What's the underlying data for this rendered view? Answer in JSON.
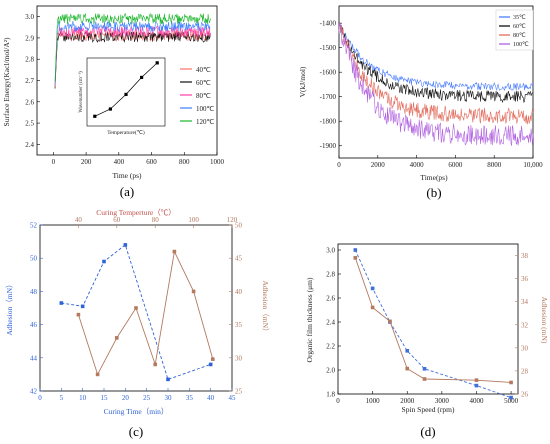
{
  "chart_data": [
    {
      "id": "a",
      "panel_label": "(a)",
      "type": "line",
      "xlabel": "Time (ps)",
      "ylabel": "Surface Energy(Kacl/mol/A²)",
      "xlim": [
        -100,
        1000
      ],
      "ylim": [
        2.35,
        3.05
      ],
      "xticks": [
        "0",
        "200",
        "400",
        "600",
        "800",
        "1000"
      ],
      "yticks": [
        "2.4",
        "2.5",
        "2.6",
        "2.7",
        "2.8",
        "2.9",
        "3.0"
      ],
      "series": [
        {
          "name": "40℃",
          "color": "#ff6f6f",
          "level": 2.91
        },
        {
          "name": "60℃",
          "color": "#111111",
          "level": 2.905
        },
        {
          "name": "80℃",
          "color": "#ff3fa6",
          "level": 2.93
        },
        {
          "name": "100℃",
          "color": "#3c7dff",
          "level": 2.955
        },
        {
          "name": "120℃",
          "color": "#1bb52a",
          "level": 2.99
        }
      ],
      "inset": {
        "xlabel": "Temperature(℃)",
        "ylabel": "Wavenumber (cm⁻¹)",
        "x": [
          40,
          60,
          80,
          100,
          120
        ],
        "y": [
          2.91,
          2.925,
          2.955,
          2.99,
          3.02
        ]
      }
    },
    {
      "id": "b",
      "panel_label": "(b)",
      "type": "line",
      "xlabel": "Time(ps)",
      "ylabel": "V(kJ/mol)",
      "xlim": [
        0,
        10000
      ],
      "ylim": [
        -1950,
        -1330
      ],
      "xticks": [
        "0",
        "2000",
        "4000",
        "6000",
        "8000",
        "10,000"
      ],
      "yticks": [
        "-1400",
        "-1500",
        "-1600",
        "-1700",
        "-1800",
        "-1900"
      ],
      "series": [
        {
          "name": "35℃",
          "color": "#4f7fff",
          "end": -1660
        },
        {
          "name": "60℃",
          "color": "#111111",
          "end": -1700
        },
        {
          "name": "80℃",
          "color": "#e26b5c",
          "end": -1780
        },
        {
          "name": "100℃",
          "color": "#b060e0",
          "end": -1860
        }
      ]
    },
    {
      "id": "c",
      "panel_label": "(c)",
      "type": "line",
      "title": "Curing Temperture（℃）",
      "xlabel": "Curing Time（min）",
      "ylabel_left": "Adhesion（mN）",
      "ylabel_right": "Adhesion（mN）",
      "x_bottom": {
        "lim": [
          0,
          45
        ],
        "ticks": [
          "0",
          "5",
          "10",
          "15",
          "20",
          "25",
          "30",
          "35",
          "40",
          "45"
        ]
      },
      "x_top": {
        "lim": [
          20,
          120
        ],
        "ticks": [
          "40",
          "60",
          "80",
          "100",
          "120"
        ]
      },
      "y_left": {
        "lim": [
          42,
          52
        ],
        "ticks": [
          "42",
          "44",
          "46",
          "48",
          "50",
          "52"
        ]
      },
      "y_right": {
        "lim": [
          25,
          50
        ],
        "ticks": [
          "25",
          "30",
          "35",
          "40",
          "45",
          "50"
        ]
      },
      "series": [
        {
          "name": "Curing Time",
          "axis": "bottom-left",
          "color": "#2f63d6",
          "style": "dashed",
          "x": [
            5,
            10,
            15,
            20,
            30,
            40
          ],
          "y": [
            47.3,
            47.1,
            49.8,
            50.8,
            42.7,
            43.6
          ]
        },
        {
          "name": "Curing Temperture",
          "axis": "top-right",
          "color": "#b37a60",
          "style": "solid",
          "x": [
            40,
            50,
            60,
            70,
            80,
            90,
            100,
            110
          ],
          "y": [
            36.5,
            27.5,
            33,
            37.5,
            29,
            46,
            40,
            29.8
          ]
        }
      ]
    },
    {
      "id": "d",
      "panel_label": "(d)",
      "type": "line",
      "xlabel": "Spin Speed (rpm)",
      "ylabel_left": "Organic film thickness (μm)",
      "ylabel_right": "Adhesion (mN)",
      "xlim": [
        0,
        5200
      ],
      "xticks": [
        "0",
        "1000",
        "2000",
        "3000",
        "4000",
        "5000"
      ],
      "y_left": {
        "lim": [
          1.8,
          3.05
        ],
        "ticks": [
          "1.8",
          "2.0",
          "2.2",
          "2.4",
          "2.6",
          "2.8",
          "3.0"
        ]
      },
      "y_right": {
        "lim": [
          26,
          39
        ],
        "ticks": [
          "26",
          "28",
          "30",
          "32",
          "34",
          "36",
          "38"
        ]
      },
      "series": [
        {
          "name": "Organic film thickness",
          "axis": "left",
          "color": "#3f6fd8",
          "style": "dashed",
          "x": [
            500,
            1000,
            1500,
            2000,
            2500,
            4000,
            5000
          ],
          "y": [
            3.0,
            2.68,
            2.4,
            2.16,
            2.01,
            1.87,
            1.77
          ]
        },
        {
          "name": "Adhesion",
          "axis": "right",
          "color": "#b37a60",
          "style": "solid",
          "x": [
            500,
            1000,
            1500,
            2000,
            2500,
            4000,
            5000
          ],
          "y": [
            37.8,
            33.5,
            32.3,
            28.2,
            27.3,
            27.2,
            27.0
          ]
        }
      ]
    }
  ]
}
